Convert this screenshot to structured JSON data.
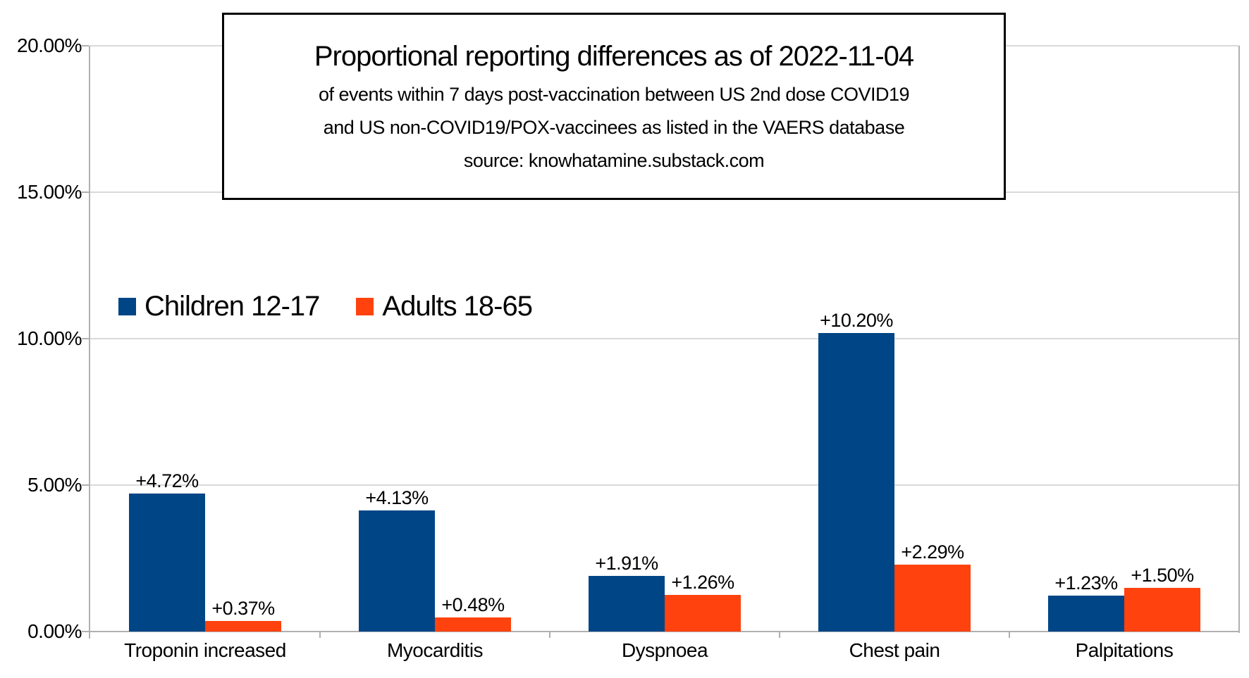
{
  "chart_data": {
    "type": "bar",
    "title": "Proportional reporting differences as of 2022-11-04",
    "subtitle_lines": [
      "of events within 7 days post-vaccination between US 2nd dose COVID19",
      "and US non-COVID19/POX-vaccinees as listed in the VAERS database",
      "source: knowhatamine.substack.com"
    ],
    "categories": [
      "Troponin increased",
      "Myocarditis",
      "Dyspnoea",
      "Chest pain",
      "Palpitations"
    ],
    "series": [
      {
        "name": "Children 12-17",
        "color": "#004586",
        "values": [
          4.72,
          4.13,
          1.91,
          10.2,
          1.23
        ],
        "data_labels": [
          "+4.72%",
          "+4.13%",
          "+1.91%",
          "+10.20%",
          "+1.23%"
        ]
      },
      {
        "name": "Adults 18-65",
        "color": "#FF420E",
        "values": [
          0.37,
          0.48,
          1.26,
          2.29,
          1.5
        ],
        "data_labels": [
          "+0.37%",
          "+0.48%",
          "+1.26%",
          "+2.29%",
          "+1.50%"
        ]
      }
    ],
    "xlabel": "",
    "ylabel": "",
    "ylim": [
      0,
      20
    ],
    "ytick_interval": 5,
    "ytick_labels": [
      "0.00%",
      "5.00%",
      "10.00%",
      "15.00%",
      "20.00%"
    ],
    "grid": true,
    "legend_position": "inside-upper-left",
    "colors": {
      "grid": "#d9d9d9",
      "axis": "#b0b0b0",
      "text": "#000000",
      "background": "#ffffff"
    }
  }
}
